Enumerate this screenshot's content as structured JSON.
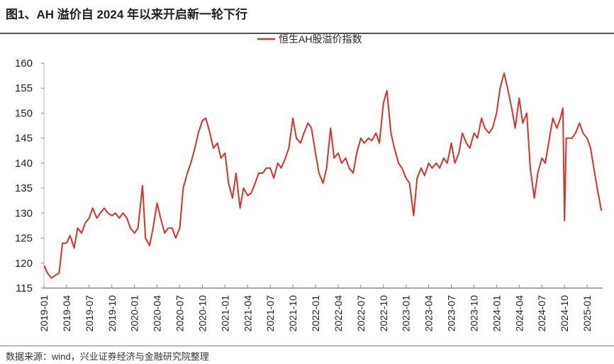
{
  "header": {
    "title": "图1、AH 溢价自 2024 年以来开启新一轮下行"
  },
  "footer": {
    "source": "数据来源：wind，兴业证券经济与金融研究院整理"
  },
  "chart_data": {
    "type": "line",
    "title": "",
    "xlabel": "",
    "ylabel": "",
    "ylim": [
      115,
      160
    ],
    "yticks": [
      "115",
      "120",
      "125",
      "130",
      "135",
      "140",
      "145",
      "150",
      "155",
      "160"
    ],
    "xticks": [
      "2019-01",
      "2019-04",
      "2019-07",
      "2019-10",
      "2020-01",
      "2020-04",
      "2020-07",
      "2020-10",
      "2021-01",
      "2021-04",
      "2021-07",
      "2021-10",
      "2022-01",
      "2022-04",
      "2022-07",
      "2022-10",
      "2023-01",
      "2023-04",
      "2023-07",
      "2023-10",
      "2024-01",
      "2024-04",
      "2024-07",
      "2024-10",
      "2025-01"
    ],
    "xlim": [
      "2019-01-01",
      "2025-03-05"
    ],
    "grid": false,
    "legend": "top-center",
    "color": "#d7312a",
    "series": [
      {
        "name": "恒生AH股溢价指数",
        "points": [
          [
            "2019-01-02",
            119.5
          ],
          [
            "2019-01-15",
            118
          ],
          [
            "2019-02-01",
            117
          ],
          [
            "2019-02-15",
            117.5
          ],
          [
            "2019-03-01",
            118
          ],
          [
            "2019-03-15",
            124
          ],
          [
            "2019-04-01",
            124
          ],
          [
            "2019-04-15",
            125.5
          ],
          [
            "2019-05-01",
            123
          ],
          [
            "2019-05-15",
            127
          ],
          [
            "2019-06-01",
            126
          ],
          [
            "2019-06-15",
            128
          ],
          [
            "2019-07-01",
            129
          ],
          [
            "2019-07-15",
            131
          ],
          [
            "2019-08-01",
            129
          ],
          [
            "2019-08-15",
            130
          ],
          [
            "2019-09-01",
            131
          ],
          [
            "2019-09-15",
            130
          ],
          [
            "2019-10-01",
            129.5
          ],
          [
            "2019-10-15",
            130
          ],
          [
            "2019-11-01",
            129
          ],
          [
            "2019-11-15",
            130
          ],
          [
            "2019-12-01",
            129
          ],
          [
            "2019-12-15",
            127
          ],
          [
            "2020-01-01",
            126
          ],
          [
            "2020-01-15",
            127
          ],
          [
            "2020-02-03",
            135.5
          ],
          [
            "2020-02-15",
            125
          ],
          [
            "2020-03-01",
            123.5
          ],
          [
            "2020-03-15",
            127
          ],
          [
            "2020-04-01",
            132
          ],
          [
            "2020-04-15",
            129
          ],
          [
            "2020-05-01",
            126
          ],
          [
            "2020-05-15",
            127
          ],
          [
            "2020-06-01",
            127
          ],
          [
            "2020-06-15",
            125
          ],
          [
            "2020-07-01",
            127
          ],
          [
            "2020-07-15",
            135
          ],
          [
            "2020-08-01",
            138
          ],
          [
            "2020-08-15",
            140
          ],
          [
            "2020-09-01",
            143
          ],
          [
            "2020-09-15",
            146
          ],
          [
            "2020-10-01",
            148.5
          ],
          [
            "2020-10-15",
            149
          ],
          [
            "2020-11-01",
            146
          ],
          [
            "2020-11-15",
            143
          ],
          [
            "2020-12-01",
            144
          ],
          [
            "2020-12-15",
            141
          ],
          [
            "2021-01-01",
            142
          ],
          [
            "2021-01-15",
            136
          ],
          [
            "2021-02-01",
            133
          ],
          [
            "2021-02-15",
            138
          ],
          [
            "2021-03-01",
            131
          ],
          [
            "2021-03-15",
            135
          ],
          [
            "2021-04-01",
            133.5
          ],
          [
            "2021-04-15",
            134
          ],
          [
            "2021-05-01",
            136
          ],
          [
            "2021-05-15",
            138
          ],
          [
            "2021-06-01",
            138
          ],
          [
            "2021-06-15",
            139
          ],
          [
            "2021-07-01",
            139
          ],
          [
            "2021-07-15",
            137
          ],
          [
            "2021-08-01",
            140
          ],
          [
            "2021-08-15",
            139
          ],
          [
            "2021-09-01",
            141
          ],
          [
            "2021-09-15",
            143
          ],
          [
            "2021-10-01",
            149
          ],
          [
            "2021-10-15",
            145
          ],
          [
            "2021-11-01",
            144
          ],
          [
            "2021-11-15",
            146
          ],
          [
            "2021-12-01",
            148
          ],
          [
            "2021-12-15",
            147
          ],
          [
            "2022-01-01",
            142
          ],
          [
            "2022-01-15",
            138
          ],
          [
            "2022-02-01",
            136
          ],
          [
            "2022-02-15",
            139
          ],
          [
            "2022-03-01",
            147
          ],
          [
            "2022-03-15",
            141
          ],
          [
            "2022-04-01",
            142
          ],
          [
            "2022-04-15",
            140
          ],
          [
            "2022-05-01",
            141
          ],
          [
            "2022-05-15",
            139
          ],
          [
            "2022-06-01",
            138
          ],
          [
            "2022-06-15",
            142
          ],
          [
            "2022-07-01",
            145
          ],
          [
            "2022-07-15",
            144
          ],
          [
            "2022-08-01",
            145
          ],
          [
            "2022-08-15",
            144.5
          ],
          [
            "2022-09-01",
            146
          ],
          [
            "2022-09-15",
            144
          ],
          [
            "2022-10-01",
            152
          ],
          [
            "2022-10-15",
            154.5
          ],
          [
            "2022-11-01",
            146
          ],
          [
            "2022-11-15",
            143
          ],
          [
            "2022-12-01",
            140
          ],
          [
            "2022-12-15",
            139
          ],
          [
            "2023-01-01",
            137
          ],
          [
            "2023-01-15",
            136
          ],
          [
            "2023-02-01",
            129.5
          ],
          [
            "2023-02-15",
            137
          ],
          [
            "2023-03-01",
            139
          ],
          [
            "2023-03-15",
            137.5
          ],
          [
            "2023-04-01",
            140
          ],
          [
            "2023-04-15",
            139
          ],
          [
            "2023-05-01",
            140
          ],
          [
            "2023-05-15",
            139
          ],
          [
            "2023-06-01",
            141
          ],
          [
            "2023-06-15",
            140
          ],
          [
            "2023-07-01",
            144
          ],
          [
            "2023-07-15",
            140
          ],
          [
            "2023-08-01",
            142
          ],
          [
            "2023-08-15",
            146
          ],
          [
            "2023-09-01",
            144
          ],
          [
            "2023-09-15",
            143
          ],
          [
            "2023-10-01",
            146
          ],
          [
            "2023-10-15",
            145
          ],
          [
            "2023-11-01",
            149
          ],
          [
            "2023-11-15",
            147
          ],
          [
            "2023-12-01",
            146
          ],
          [
            "2023-12-15",
            147
          ],
          [
            "2024-01-01",
            150
          ],
          [
            "2024-01-15",
            155
          ],
          [
            "2024-02-01",
            158
          ],
          [
            "2024-02-15",
            155
          ],
          [
            "2024-03-01",
            151
          ],
          [
            "2024-03-15",
            147
          ],
          [
            "2024-04-01",
            153
          ],
          [
            "2024-04-15",
            148
          ],
          [
            "2024-05-01",
            150
          ],
          [
            "2024-05-15",
            139
          ],
          [
            "2024-06-01",
            133
          ],
          [
            "2024-06-15",
            138
          ],
          [
            "2024-07-01",
            141
          ],
          [
            "2024-07-15",
            140
          ],
          [
            "2024-08-01",
            145
          ],
          [
            "2024-08-15",
            149
          ],
          [
            "2024-09-01",
            147
          ],
          [
            "2024-09-15",
            149
          ],
          [
            "2024-09-25",
            151
          ],
          [
            "2024-10-01",
            128.5
          ],
          [
            "2024-10-08",
            145
          ],
          [
            "2024-11-01",
            145
          ],
          [
            "2024-11-15",
            146
          ],
          [
            "2024-12-01",
            148
          ],
          [
            "2024-12-15",
            146
          ],
          [
            "2025-01-01",
            145
          ],
          [
            "2025-01-15",
            143
          ],
          [
            "2025-02-01",
            138
          ],
          [
            "2025-02-15",
            134
          ],
          [
            "2025-02-28",
            130.5
          ]
        ]
      }
    ]
  }
}
